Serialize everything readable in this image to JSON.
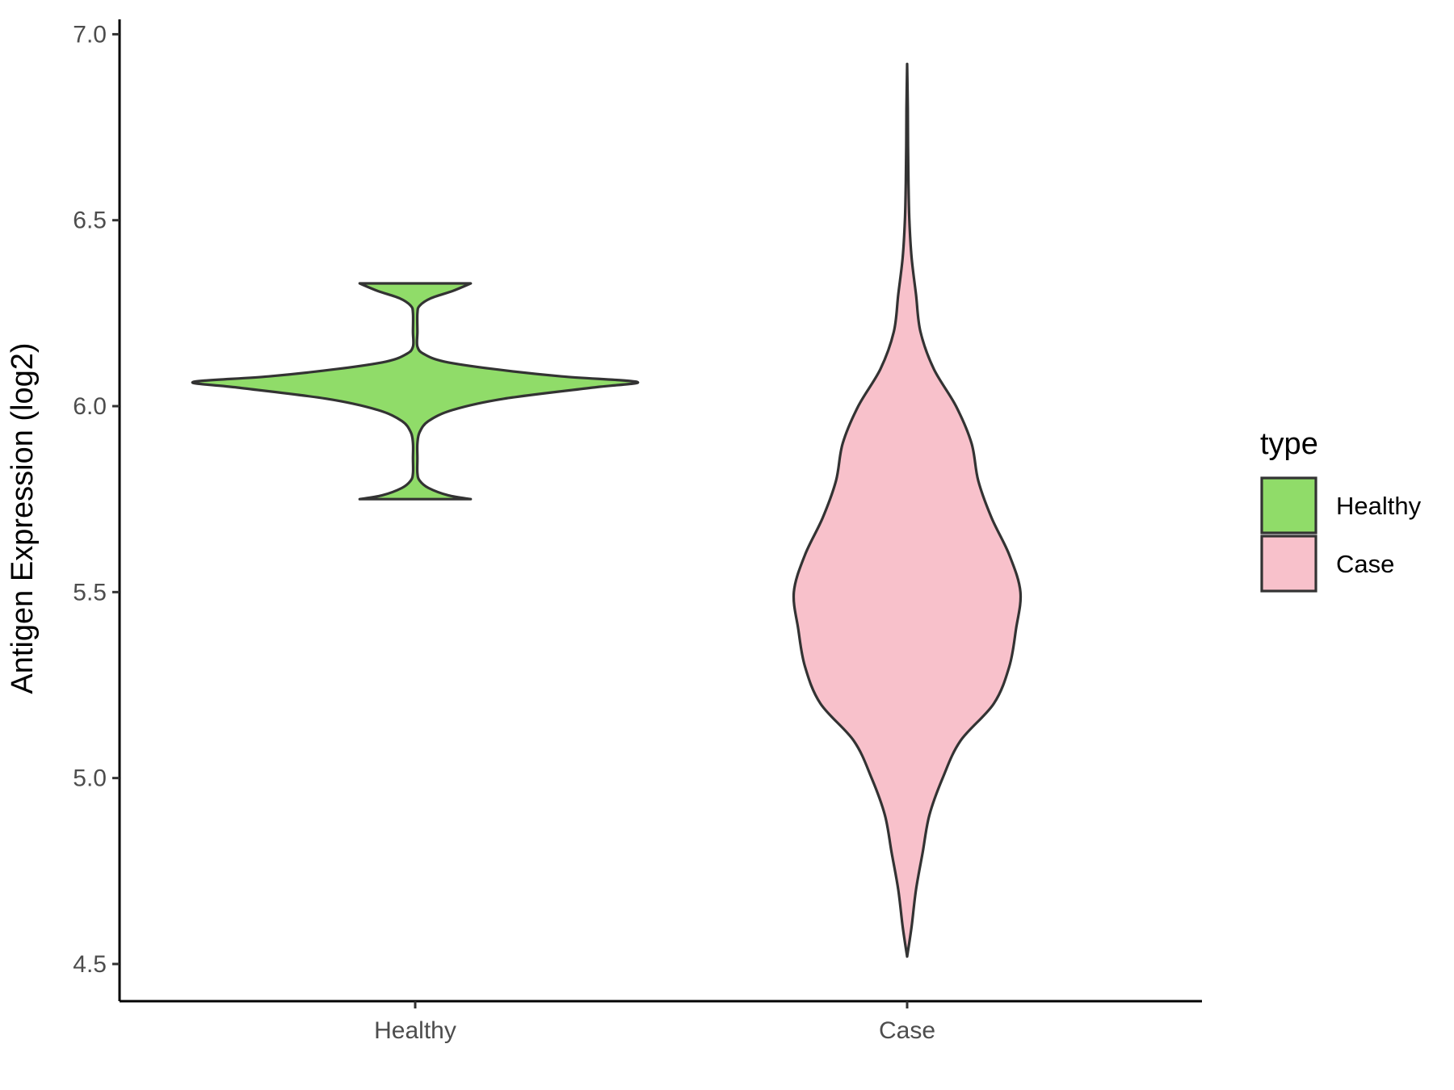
{
  "chart_data": {
    "type": "violin",
    "title": "",
    "xlabel": "",
    "ylabel": "Antigen Expression (log2)",
    "ylim": [
      4.4,
      7.04
    ],
    "yticks": [
      4.5,
      5.0,
      5.5,
      6.0,
      6.5,
      7.0
    ],
    "ytick_labels": [
      "4.5",
      "5.0",
      "5.5",
      "6.0",
      "6.5",
      "7.0"
    ],
    "categories": [
      "Healthy",
      "Case"
    ],
    "grid": false,
    "legend": {
      "title": "type",
      "placement": "right",
      "entries": [
        {
          "label": "Healthy",
          "color": "#90dc69"
        },
        {
          "label": "Case",
          "color": "#f8c1cb"
        }
      ]
    },
    "series": [
      {
        "name": "Healthy",
        "color": "#90dc69",
        "range": [
          5.75,
          6.33
        ],
        "density_profile": [
          [
            5.75,
            0.25
          ],
          [
            5.76,
            0.15
          ],
          [
            5.78,
            0.06
          ],
          [
            5.8,
            0.02
          ],
          [
            5.82,
            0.01
          ],
          [
            5.86,
            0.01
          ],
          [
            5.9,
            0.01
          ],
          [
            5.93,
            0.02
          ],
          [
            5.96,
            0.06
          ],
          [
            5.99,
            0.17
          ],
          [
            6.02,
            0.4
          ],
          [
            6.05,
            0.8
          ],
          [
            6.065,
            1.0
          ],
          [
            6.08,
            0.66
          ],
          [
            6.1,
            0.35
          ],
          [
            6.12,
            0.13
          ],
          [
            6.14,
            0.04
          ],
          [
            6.16,
            0.01
          ],
          [
            6.2,
            0.01
          ],
          [
            6.25,
            0.01
          ],
          [
            6.27,
            0.02
          ],
          [
            6.29,
            0.07
          ],
          [
            6.31,
            0.17
          ],
          [
            6.33,
            0.25
          ]
        ]
      },
      {
        "name": "Case",
        "color": "#f8c1cb",
        "range": [
          4.52,
          6.92
        ],
        "density_profile": [
          [
            4.52,
            0.0
          ],
          [
            4.6,
            0.02
          ],
          [
            4.7,
            0.04
          ],
          [
            4.8,
            0.07
          ],
          [
            4.9,
            0.1
          ],
          [
            5.0,
            0.16
          ],
          [
            5.1,
            0.24
          ],
          [
            5.2,
            0.39
          ],
          [
            5.3,
            0.46
          ],
          [
            5.4,
            0.49
          ],
          [
            5.5,
            0.51
          ],
          [
            5.6,
            0.46
          ],
          [
            5.7,
            0.38
          ],
          [
            5.8,
            0.32
          ],
          [
            5.9,
            0.29
          ],
          [
            6.0,
            0.22
          ],
          [
            6.1,
            0.12
          ],
          [
            6.2,
            0.06
          ],
          [
            6.3,
            0.04
          ],
          [
            6.4,
            0.02
          ],
          [
            6.5,
            0.01
          ],
          [
            6.6,
            0.006
          ],
          [
            6.7,
            0.004
          ],
          [
            6.8,
            0.003
          ],
          [
            6.92,
            0.0
          ]
        ]
      }
    ]
  }
}
